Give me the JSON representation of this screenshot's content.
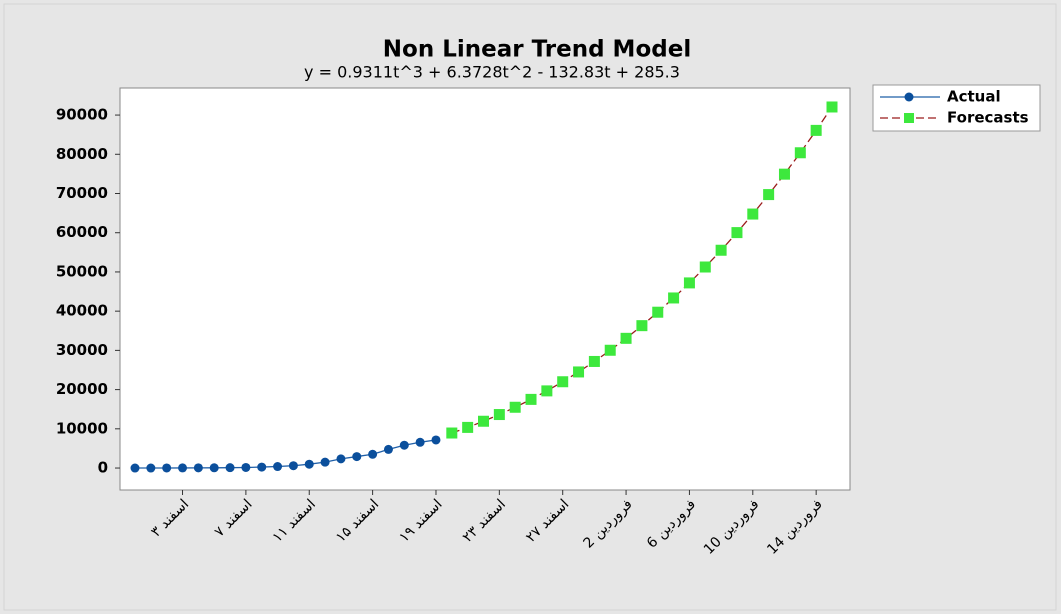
{
  "chart_data": {
    "type": "line",
    "title": "Non Linear Trend Model",
    "subtitle": "y = 0.9311t^3 + 6.3728t^2 - 132.83t + 285.3",
    "categories": [
      null,
      null,
      null,
      "۳ اسفند",
      null,
      null,
      null,
      "۷ اسفند",
      null,
      null,
      null,
      "۱۱ اسفند",
      null,
      null,
      null,
      "۱۵ اسفند",
      null,
      null,
      null,
      "۱۹ اسفند",
      null,
      null,
      null,
      "۲۳ اسفند",
      null,
      null,
      null,
      "۲۷ اسفند",
      null,
      null,
      null,
      "2 فروردین",
      null,
      null,
      null,
      "6 فروردین",
      null,
      null,
      null,
      "10 فروردین",
      null,
      null,
      null,
      "14 فروردین",
      null
    ],
    "series": [
      {
        "name": "Actual",
        "color": "#1f5fa8",
        "marker": "circle",
        "marker_color": "#0b4f9c",
        "dash": false,
        "values": [
          2,
          5,
          18,
          28,
          43,
          61,
          95,
          139,
          245,
          388,
          593,
          978,
          1501,
          2336,
          2922,
          3513,
          4747,
          5823,
          6566,
          7161,
          null,
          null,
          null,
          null,
          null,
          null,
          null,
          null,
          null,
          null,
          null,
          null,
          null,
          null,
          null,
          null,
          null,
          null,
          null,
          null,
          null,
          null,
          null,
          null,
          null
        ]
      },
      {
        "name": "Forecasts",
        "color": "#9b1c1c",
        "marker": "square",
        "marker_color": "#3de83d",
        "dash": true,
        "values": [
          null,
          null,
          null,
          null,
          null,
          null,
          null,
          null,
          null,
          null,
          null,
          null,
          null,
          null,
          null,
          null,
          null,
          null,
          null,
          null,
          8929,
          10362,
          11930,
          13640,
          15496,
          17505,
          19672,
          22002,
          24501,
          27176,
          30030,
          33071,
          36303,
          39732,
          43364,
          47204,
          51258,
          55531,
          60030,
          64759,
          69724,
          74931,
          80386,
          86093,
          92059
        ]
      }
    ],
    "ylim": [
      -5600,
      96900
    ],
    "yticks": [
      0,
      10000,
      20000,
      30000,
      40000,
      50000,
      60000,
      70000,
      80000,
      90000
    ],
    "grid": false,
    "legend": "right"
  }
}
